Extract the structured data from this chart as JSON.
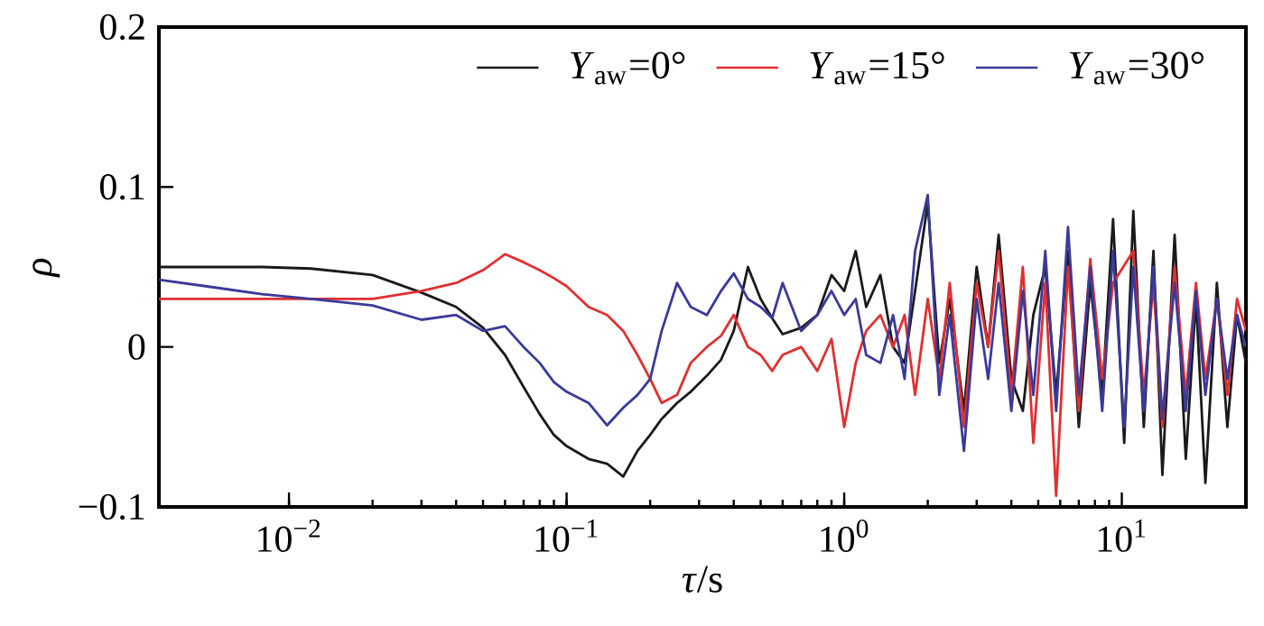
{
  "chart_data": {
    "type": "line",
    "xlabel": "*τ*/s",
    "ylabel": "ρ",
    "log": "x",
    "grid": false,
    "legend": "top right",
    "line_style": "solid",
    "marker": "none",
    "xlim": [
      0.0034,
      28
    ],
    "ylim": [
      -0.1,
      0.2
    ],
    "xticks": [
      {
        "value": 0.01,
        "label": "10$^{−2}$"
      },
      {
        "value": 0.1,
        "label": "10$^{−1}$"
      },
      {
        "value": 1,
        "label": "10$^{0}$"
      },
      {
        "value": 10,
        "label": "10$^{1}$"
      }
    ],
    "yticks": [
      {
        "value": -0.1,
        "label": "−0.1"
      },
      0,
      0.1,
      0.2
    ],
    "x": [
      0.0034,
      0.005,
      0.008,
      0.012,
      0.02,
      0.03,
      0.04,
      0.05,
      0.06,
      0.07,
      0.08,
      0.09,
      0.1,
      0.12,
      0.14,
      0.16,
      0.18,
      0.2,
      0.22,
      0.25,
      0.28,
      0.32,
      0.36,
      0.4,
      0.45,
      0.5,
      0.55,
      0.6,
      0.7,
      0.8,
      0.9,
      1.0,
      1.1,
      1.2,
      1.35,
      1.5,
      1.65,
      1.8,
      2.0,
      2.2,
      2.4,
      2.7,
      3.0,
      3.3,
      3.6,
      4.0,
      4.4,
      4.8,
      5.3,
      5.8,
      6.4,
      7.0,
      7.7,
      8.5,
      9.3,
      10.2,
      11,
      12,
      13,
      14,
      15.5,
      17,
      18.5,
      20,
      22,
      24,
      26,
      28
    ],
    "series": [
      {
        "name": "*Y*$_{aw}$=0°",
        "color": "#1a1a1a",
        "values": [
          0.05,
          0.05,
          0.05,
          0.049,
          0.045,
          0.034,
          0.025,
          0.012,
          -0.005,
          -0.025,
          -0.042,
          -0.055,
          -0.062,
          -0.07,
          -0.073,
          -0.081,
          -0.065,
          -0.055,
          -0.045,
          -0.035,
          -0.028,
          -0.018,
          -0.008,
          0.01,
          0.05,
          0.03,
          0.018,
          0.008,
          0.012,
          0.02,
          0.045,
          0.035,
          0.06,
          0.025,
          0.045,
          0.0,
          -0.01,
          0.035,
          0.09,
          -0.01,
          0.03,
          -0.04,
          0.05,
          0.0,
          0.07,
          -0.02,
          -0.04,
          0.02,
          0.05,
          -0.03,
          0.06,
          -0.05,
          0.04,
          -0.03,
          0.08,
          -0.06,
          0.085,
          -0.05,
          0.06,
          -0.08,
          0.07,
          -0.07,
          0.03,
          -0.085,
          0.04,
          -0.05,
          0.02,
          -0.01
        ]
      },
      {
        "name": "*Y*$_{aw}$=15°",
        "color": "#e03030",
        "values": [
          0.03,
          0.03,
          0.03,
          0.03,
          0.03,
          0.035,
          0.04,
          0.048,
          0.058,
          0.053,
          0.048,
          0.043,
          0.038,
          0.025,
          0.02,
          0.01,
          -0.005,
          -0.02,
          -0.035,
          -0.03,
          -0.01,
          0.0,
          0.007,
          0.02,
          0.0,
          -0.005,
          -0.015,
          -0.005,
          0.0,
          -0.015,
          0.005,
          -0.05,
          -0.01,
          0.01,
          0.02,
          0.0,
          0.02,
          -0.03,
          0.03,
          -0.02,
          0.04,
          -0.05,
          0.04,
          0.0,
          0.06,
          -0.03,
          0.05,
          -0.06,
          0.04,
          -0.093,
          0.05,
          -0.04,
          0.055,
          -0.02,
          0.04,
          null,
          0.06,
          -0.03,
          0.04,
          -0.05,
          0.05,
          -0.03,
          0.04,
          -0.02,
          0.03,
          -0.03,
          0.03,
          0.01
        ]
      },
      {
        "name": "*Y*$_{aw}$=30°",
        "color": "#3a3a9a",
        "values": [
          0.042,
          0.038,
          0.033,
          0.03,
          0.026,
          0.017,
          0.02,
          0.01,
          0.013,
          0.0,
          -0.01,
          -0.022,
          -0.028,
          -0.035,
          -0.049,
          -0.038,
          -0.03,
          -0.02,
          0.01,
          0.04,
          0.025,
          0.02,
          0.035,
          0.046,
          0.03,
          0.025,
          0.018,
          0.04,
          0.01,
          0.02,
          0.035,
          0.02,
          0.03,
          -0.005,
          -0.01,
          0.02,
          -0.02,
          0.06,
          0.095,
          -0.03,
          0.02,
          -0.065,
          0.03,
          -0.02,
          0.04,
          -0.04,
          0.035,
          -0.03,
          0.06,
          -0.04,
          0.075,
          -0.03,
          0.05,
          -0.04,
          0.06,
          -0.05,
          0.05,
          -0.04,
          0.05,
          -0.045,
          0.04,
          -0.04,
          0.035,
          -0.03,
          0.03,
          -0.02,
          0.02,
          0.0
        ]
      }
    ]
  }
}
